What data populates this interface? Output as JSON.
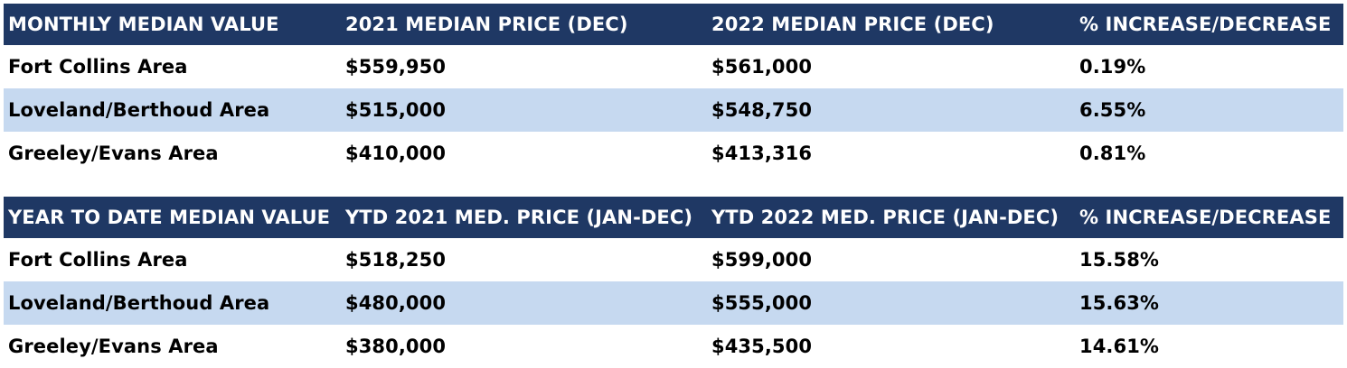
{
  "monthly": {
    "headers": [
      "MONTHLY MEDIAN VALUE",
      "2021 MEDIAN PRICE (DEC)",
      "2022 MEDIAN PRICE (DEC)",
      "% INCREASE/DECREASE"
    ],
    "rows": [
      [
        "Fort Collins Area",
        "$559,950",
        "$561,000",
        "0.19%"
      ],
      [
        "Loveland/Berthoud Area",
        "$515,000",
        "$548,750",
        "6.55%"
      ],
      [
        "Greeley/Evans Area",
        "$410,000",
        "$413,316",
        "0.81%"
      ]
    ]
  },
  "ytd": {
    "headers": [
      "YEAR TO DATE MEDIAN VALUE",
      "YTD 2021 MED. PRICE (JAN-DEC)",
      "YTD 2022 MED. PRICE (JAN-DEC)",
      "% INCREASE/DECREASE"
    ],
    "rows": [
      [
        "Fort Collins Area",
        "$518,250",
        "$599,000",
        "15.58%"
      ],
      [
        "Loveland/Berthoud Area",
        "$480,000",
        "$555,000",
        "15.63%"
      ],
      [
        "Greeley/Evans Area",
        "$380,000",
        "$435,500",
        "14.61%"
      ]
    ]
  },
  "colors": {
    "header_bg": "#1f3864",
    "header_text": "#ffffff",
    "shaded_row": "#c6d9f0"
  }
}
